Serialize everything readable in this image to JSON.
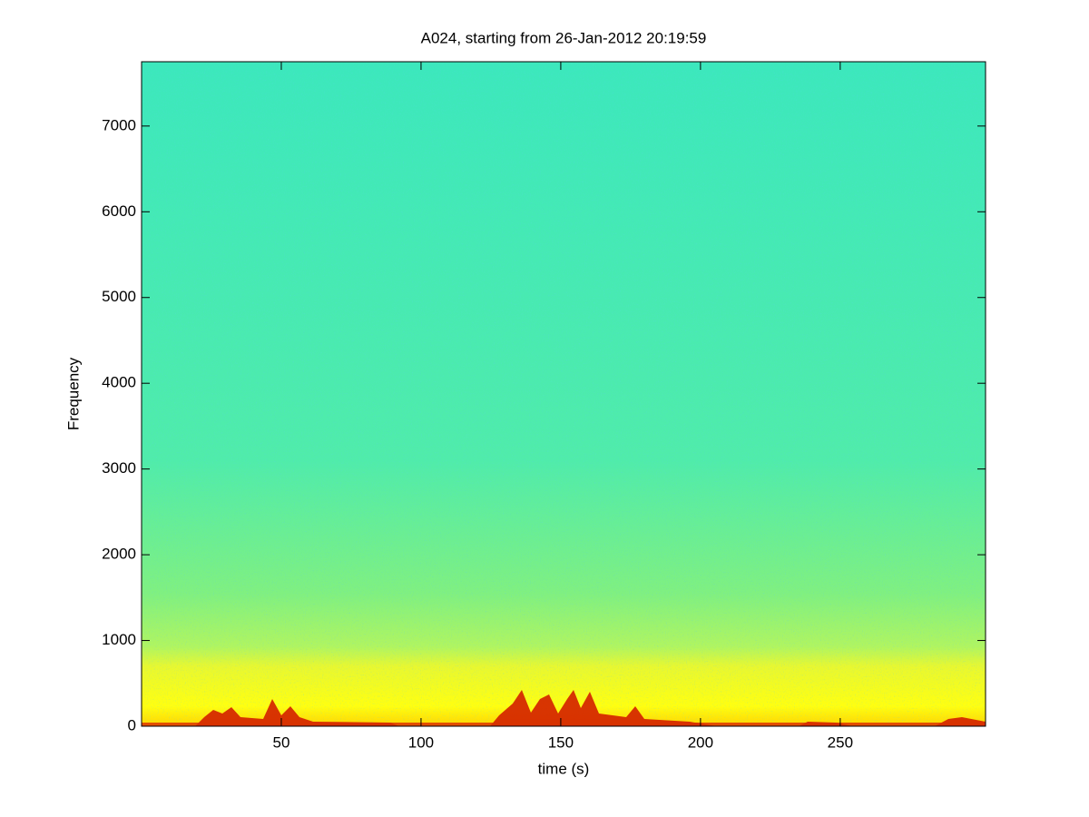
{
  "chart_data": {
    "type": "spectrogram",
    "title": "A024, starting from 26-Jan-2012 20:19:59",
    "x_label": "time (s)",
    "y_label": "Frequency",
    "xlim": [
      0,
      302
    ],
    "xticks": [
      50,
      100,
      150,
      200,
      250
    ],
    "ylim": [
      0,
      7750
    ],
    "yticks": [
      0,
      1000,
      2000,
      3000,
      4000,
      5000,
      6000,
      7000
    ]
  }
}
